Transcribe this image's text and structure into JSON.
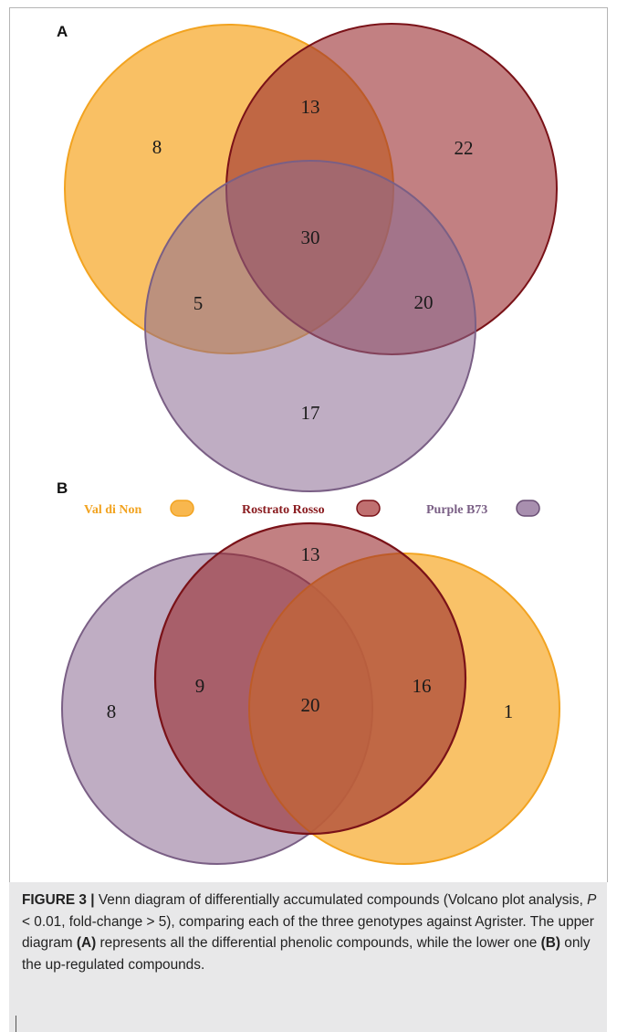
{
  "panels": {
    "a": {
      "label": "A",
      "regions": {
        "val_only": "8",
        "val_ros": "13",
        "ros_only": "22",
        "all_three": "30",
        "val_pur": "5",
        "ros_pur": "20",
        "pur_only": "17"
      }
    },
    "b": {
      "label": "B",
      "regions": {
        "pur_only": "8",
        "pur_ros": "9",
        "ros_only": "13",
        "all_three": "20",
        "ros_val": "16",
        "val_only": "1"
      }
    }
  },
  "legend": {
    "val": "Val di Non",
    "ros": "Rostrato Rosso",
    "pur": "Purple B73"
  },
  "colors": {
    "val_fill": "#f8b74e",
    "val_stroke": "#f2a320",
    "ros_fill": "#9a2c2e",
    "ros_stroke": "#7a1218",
    "pur_fill": "#8a6a92",
    "pur_stroke": "#7a5f85"
  },
  "caption": {
    "figure_label": "FIGURE 3 |",
    "text_1": " Venn diagram of differentially accumulated compounds (Volcano plot analysis, ",
    "p_symbol": "P",
    "text_2": " < 0.01, fold-change > 5), comparing each of the three genotypes against Agrister. The upper diagram ",
    "ref_a": "(A)",
    "text_3": " represents all the differential phenolic compounds, while the lower one ",
    "ref_b": "(B)",
    "text_4": " only the up-regulated compounds."
  }
}
